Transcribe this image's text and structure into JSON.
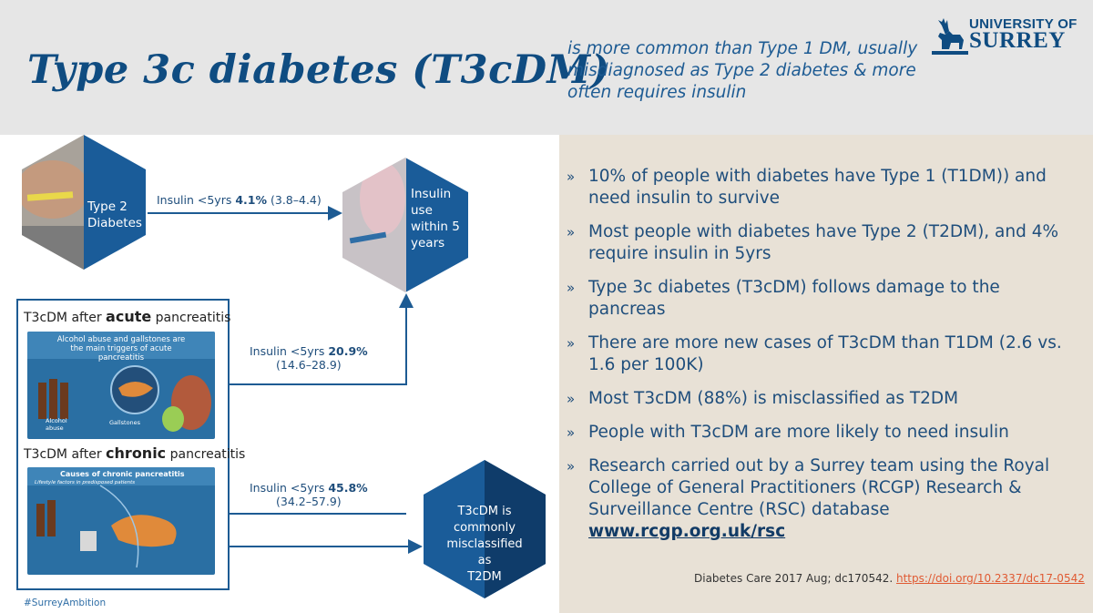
{
  "header": {
    "title": "Type 3c diabetes (T3cDM)",
    "subtitle": "is more common than Type 1 DM, usually misdiagnosed as Type 2 diabetes & more often requires insulin",
    "logo_line1": "UNIVERSITY OF",
    "logo_line2": "SURREY"
  },
  "diagram": {
    "type2_label_line1": "Type 2",
    "type2_label_line2": "Diabetes",
    "insulin_label_line1": "Insulin",
    "insulin_label_line2": "use",
    "insulin_label_line3": "within 5",
    "insulin_label_line4": "years",
    "t2_arrow_prefix": "Insulin <5yrs ",
    "t2_arrow_value": "4.1%",
    "t2_arrow_ci": " (3.8–4.4)",
    "acute_arrow_prefix": "Insulin <5yrs  ",
    "acute_arrow_value": "20.9%",
    "acute_arrow_ci": "(14.6–28.9)",
    "chronic_arrow_prefix": "Insulin <5yrs  ",
    "chronic_arrow_value": "45.8%",
    "chronic_arrow_ci": "(34.2–57.9)",
    "acute_head_pre": "T3cDM after ",
    "acute_head_bold": "acute",
    "acute_head_post": " pancreatitis",
    "acute_image_caption": "Alcohol abuse and gallstones are the main triggers of acute pancreatitis",
    "acute_image_label_alcohol": "Alcohol abuse",
    "acute_image_label_gallstones": "Gallstones",
    "chronic_head_pre": "T3cDM after ",
    "chronic_head_bold": "chronic",
    "chronic_head_post": " pancreatitis",
    "chronic_image_caption": "Causes of chronic pancreatitis",
    "chronic_image_sub": "Lifestyle factors in predisposed patients",
    "misclass_line1": "T3cDM is",
    "misclass_line2": "commonly",
    "misclass_line3": "misclassified",
    "misclass_line4": "as",
    "misclass_line5": "T2DM",
    "hashtag": "#SurreyAmbition"
  },
  "bullets": [
    "10% of people with diabetes have Type 1 (T1DM)) and need insulin to survive",
    "Most people with diabetes have Type 2 (T2DM), and 4% require insulin in 5yrs",
    "Type 3c diabetes (T3cDM) follows damage to the pancreas",
    "There are more new cases of T3cDM than T1DM (2.6 vs. 1.6 per 100K)",
    "Most T3cDM (88%) is misclassified as T2DM",
    "People with T3cDM are more likely to need insulin",
    "Research carried out by a Surrey team using the Royal College of General Practitioners (RCGP) Research & Surveillance Centre (RSC) database"
  ],
  "bullet_url": "www.rcgp.org.uk/rsc",
  "bullet_chevron": "»",
  "citation": {
    "text": "Diabetes Care 2017 Aug; dc170542. ",
    "link": "https://doi.org/10.2337/dc17-0542"
  },
  "colors": {
    "brand_blue": "#0f4c81",
    "hex_blue": "#1a5c99",
    "hex_dark": "#0f3c6a",
    "panel_beige": "#e8e1d6",
    "link_orange": "#e05a33"
  }
}
